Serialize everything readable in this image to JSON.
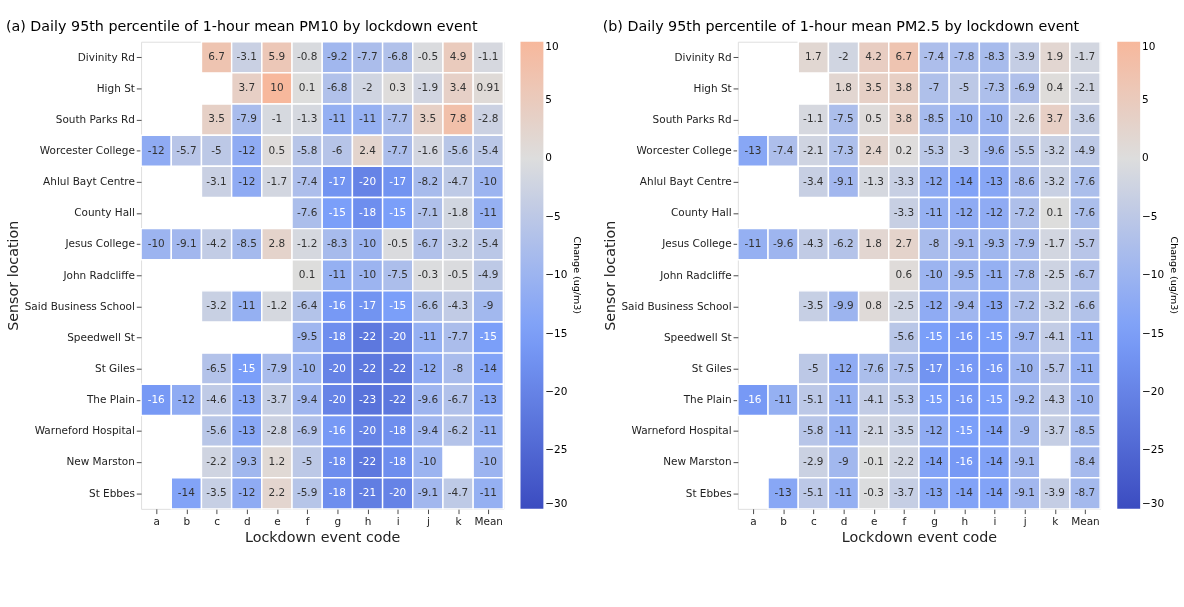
{
  "chart_data": [
    {
      "type": "heatmap",
      "title": "(a)   Daily 95th percentile of 1-hour mean PM10 by lockdown event",
      "xlabel": "Lockdown event code",
      "ylabel": "Sensor location",
      "clabel": "Change (ug/m3)",
      "categories": [
        "a",
        "b",
        "c",
        "d",
        "e",
        "f",
        "g",
        "h",
        "i",
        "j",
        "k",
        "Mean"
      ],
      "y_categories": [
        "Divinity Rd",
        "High St",
        "South Parks Rd",
        "Worcester College",
        "Ahlul Bayt Centre",
        "County Hall",
        "Jesus College",
        "John Radcliffe",
        "Said Business School",
        "Speedwell St",
        "St Giles",
        "The Plain",
        "Warneford Hospital",
        "New Marston",
        "St Ebbes"
      ],
      "cells": [
        [
          null,
          null,
          6.7,
          -3.1,
          5.9,
          -0.8,
          -9.2,
          -7.7,
          -6.8,
          -0.5,
          4.9,
          -1.1
        ],
        [
          null,
          null,
          null,
          3.7,
          10,
          0.1,
          -6.8,
          -2,
          0.3,
          -1.9,
          3.4,
          0.91
        ],
        [
          null,
          null,
          3.5,
          -7.9,
          -1,
          -1.3,
          -11,
          -11,
          -7.7,
          3.5,
          7.8,
          -2.8
        ],
        [
          -12,
          -5.7,
          -5,
          -12,
          0.5,
          -5.8,
          -6,
          2.4,
          -7.7,
          -1.6,
          -5.6,
          -5.4
        ],
        [
          null,
          null,
          -3.1,
          -12,
          -1.7,
          -7.4,
          -17,
          -20,
          -17,
          -8.2,
          -4.7,
          -10
        ],
        [
          null,
          null,
          null,
          null,
          null,
          -7.6,
          -15,
          -18,
          -15,
          -7.1,
          -1.8,
          -11
        ],
        [
          -10,
          -9.1,
          -4.2,
          -8.5,
          2.8,
          -1.2,
          -8.3,
          -10,
          -0.5,
          -6.7,
          -3.2,
          -5.4
        ],
        [
          null,
          null,
          null,
          null,
          null,
          0.1,
          -11,
          -10,
          -7.5,
          -0.3,
          -0.5,
          -4.9
        ],
        [
          null,
          null,
          -3.2,
          -11,
          -1.2,
          -6.4,
          -16,
          -17,
          -15,
          -6.6,
          -4.3,
          -9
        ],
        [
          null,
          null,
          null,
          null,
          null,
          -9.5,
          -18,
          -22,
          -20,
          -11,
          -7.7,
          -15
        ],
        [
          null,
          null,
          -6.5,
          -15,
          -7.9,
          -10,
          -20,
          -22,
          -22,
          -12,
          -8,
          -14
        ],
        [
          -16,
          -12,
          -4.6,
          -13,
          -3.7,
          -9.4,
          -20,
          -23,
          -22,
          -9.6,
          -6.7,
          -13
        ],
        [
          null,
          null,
          -5.6,
          -13,
          -2.8,
          -6.9,
          -16,
          -20,
          -18,
          -9.4,
          -6.2,
          -11
        ],
        [
          null,
          null,
          -2.2,
          -9.3,
          1.2,
          -5,
          -18,
          -22,
          -18,
          -10,
          null,
          -10
        ],
        [
          null,
          -14,
          -3.5,
          -12,
          2.2,
          -5.9,
          -18,
          -21,
          -20,
          -9.1,
          -4.7,
          -11
        ]
      ],
      "clim": [
        -30,
        10
      ],
      "cticks": [
        10,
        5,
        0,
        -5,
        -10,
        -15,
        -20,
        -25,
        -30
      ],
      "data_labels": true
    },
    {
      "type": "heatmap",
      "title": "(b)   Daily 95th percentile of 1-hour mean PM2.5 by lockdown event",
      "xlabel": "Lockdown event code",
      "ylabel": "Sensor location",
      "clabel": "Change (ug/m3)",
      "categories": [
        "a",
        "b",
        "c",
        "d",
        "e",
        "f",
        "g",
        "h",
        "i",
        "j",
        "k",
        "Mean"
      ],
      "y_categories": [
        "Divinity Rd",
        "High St",
        "South Parks Rd",
        "Worcester College",
        "Ahlul Bayt Centre",
        "County Hall",
        "Jesus College",
        "John Radcliffe",
        "Said Business School",
        "Speedwell St",
        "St Giles",
        "The Plain",
        "Warneford Hospital",
        "New Marston",
        "St Ebbes"
      ],
      "cells": [
        [
          null,
          null,
          1.7,
          -2,
          4.2,
          6.7,
          -7.4,
          -7.8,
          -8.3,
          -3.9,
          1.9,
          -1.7
        ],
        [
          null,
          null,
          null,
          1.8,
          3.5,
          3.8,
          -7,
          -5,
          -7.3,
          -6.9,
          0.4,
          -2.1
        ],
        [
          null,
          null,
          -1.1,
          -7.5,
          0.5,
          3.8,
          -8.5,
          -10,
          -10,
          -2.6,
          3.7,
          -3.6
        ],
        [
          -13,
          -7.4,
          -2.1,
          -7.3,
          2.4,
          0.2,
          -5.3,
          -3,
          -9.6,
          -5.5,
          -3.2,
          -4.9
        ],
        [
          null,
          null,
          -3.4,
          -9.1,
          -1.3,
          -3.3,
          -12,
          -14,
          -13,
          -8.6,
          -3.2,
          -7.6
        ],
        [
          null,
          null,
          null,
          null,
          null,
          -3.3,
          -11,
          -12,
          -12,
          -7.2,
          0.1,
          -7.6
        ],
        [
          -11,
          -9.6,
          -4.3,
          -6.2,
          1.8,
          2.7,
          -8,
          -9.1,
          -9.3,
          -7.9,
          -1.7,
          -5.7
        ],
        [
          null,
          null,
          null,
          null,
          null,
          0.6,
          -10,
          -9.5,
          -11,
          -7.8,
          -2.5,
          -6.7
        ],
        [
          null,
          null,
          -3.5,
          -9.9,
          0.8,
          -2.5,
          -12,
          -9.4,
          -13,
          -7.2,
          -3.2,
          -6.6
        ],
        [
          null,
          null,
          null,
          null,
          null,
          -5.6,
          -15,
          -16,
          -15,
          -9.7,
          -4.1,
          -11
        ],
        [
          null,
          null,
          -5,
          -12,
          -7.6,
          -7.5,
          -17,
          -16,
          -16,
          -10,
          -5.7,
          -11
        ],
        [
          -16,
          -11,
          -5.1,
          -11,
          -4.1,
          -5.3,
          -15,
          -16,
          -15,
          -9.2,
          -4.3,
          -10
        ],
        [
          null,
          null,
          -5.8,
          -11,
          -2.1,
          -3.5,
          -12,
          -15,
          -14,
          -9,
          -3.7,
          -8.5
        ],
        [
          null,
          null,
          -2.9,
          -9,
          -0.1,
          -2.2,
          -14,
          -16,
          -14,
          -9.1,
          null,
          -8.4
        ],
        [
          null,
          -13,
          -5.1,
          -11,
          -0.3,
          -3.7,
          -13,
          -14,
          -14,
          -9.1,
          -3.9,
          -8.7
        ]
      ],
      "clim": [
        -30,
        10
      ],
      "cticks": [
        10,
        5,
        0,
        -5,
        -10,
        -15,
        -20,
        -25,
        -30
      ],
      "data_labels": true
    }
  ]
}
